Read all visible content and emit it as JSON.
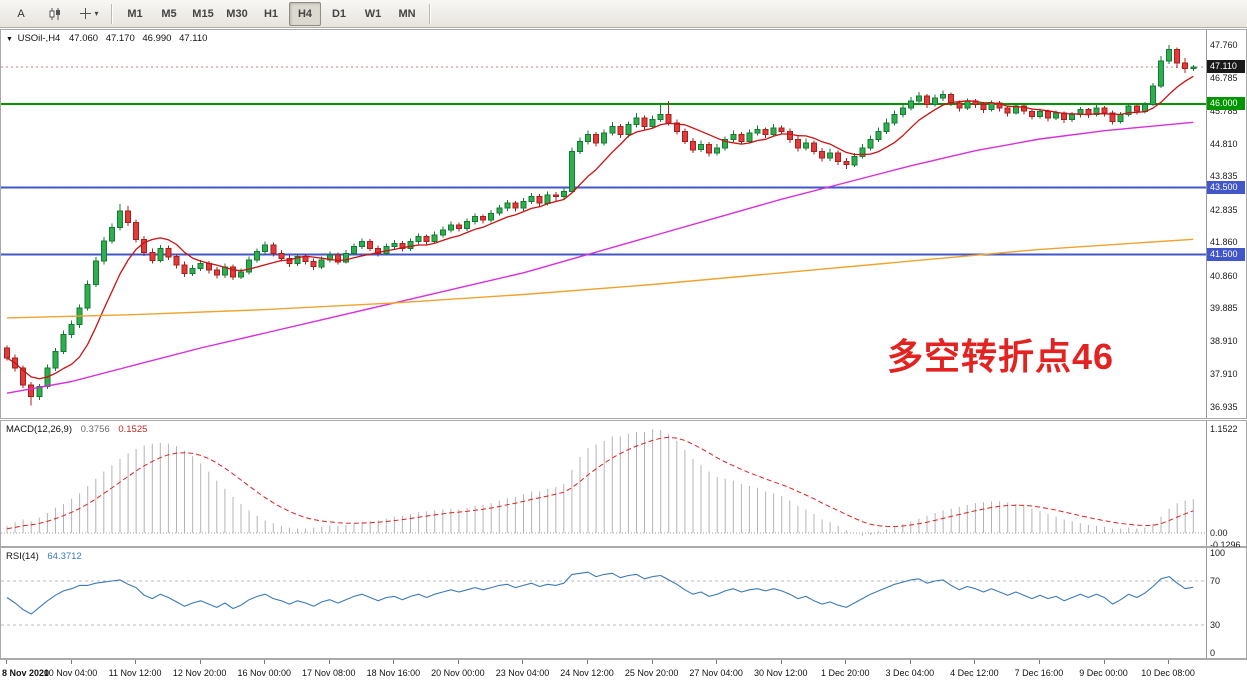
{
  "toolbar": {
    "annotate_label": "A",
    "caret_glyph": "▾",
    "timeframes": [
      {
        "label": "M1",
        "active": false
      },
      {
        "label": "M5",
        "active": false
      },
      {
        "label": "M15",
        "active": false
      },
      {
        "label": "M30",
        "active": false
      },
      {
        "label": "H1",
        "active": false
      },
      {
        "label": "H4",
        "active": true
      },
      {
        "label": "D1",
        "active": false
      },
      {
        "label": "W1",
        "active": false
      },
      {
        "label": "MN",
        "active": false
      }
    ]
  },
  "chart": {
    "symbol": "USOil-,H4",
    "ohlc": {
      "open": "47.060",
      "high": "47.170",
      "low": "46.990",
      "close": "47.110"
    },
    "annotation": {
      "text": "多空转折点46",
      "color": "#e32222"
    },
    "current_price": {
      "label": "47.110",
      "price": 47.11,
      "badge_color": "#1a1a1a"
    },
    "levels": [
      {
        "label": "46.000",
        "price": 46.0,
        "color": "#009600"
      },
      {
        "label": "43.500",
        "price": 43.5,
        "color": "#4156c8"
      },
      {
        "label": "41.500",
        "price": 41.5,
        "color": "#4156c8"
      }
    ],
    "price_axis": [
      {
        "text": "47.760",
        "value": 47.76
      },
      {
        "text": "46.785",
        "value": 46.785
      },
      {
        "text": "45.785",
        "value": 45.785
      },
      {
        "text": "44.810",
        "value": 44.81
      },
      {
        "text": "43.835",
        "value": 43.835
      },
      {
        "text": "42.835",
        "value": 42.835
      },
      {
        "text": "41.860",
        "value": 41.86
      },
      {
        "text": "40.860",
        "value": 40.86
      },
      {
        "text": "39.885",
        "value": 39.885
      },
      {
        "text": "38.910",
        "value": 38.91
      },
      {
        "text": "37.910",
        "value": 37.91
      },
      {
        "text": "36.935",
        "value": 36.935
      }
    ]
  },
  "macd": {
    "label": "MACD(12,26,9)",
    "main_value": "0.3756",
    "signal_value": "0.1525",
    "axis": [
      {
        "text": "1.1522",
        "value": 1.1522
      },
      {
        "text": "0.00",
        "value": 0
      },
      {
        "text": "-0.1296",
        "value": -0.1296
      }
    ]
  },
  "rsi": {
    "label": "RSI(14)",
    "value": "64.3712",
    "axis": [
      {
        "text": "100",
        "value": 100
      },
      {
        "text": "70",
        "value": 70
      },
      {
        "text": "30",
        "value": 30
      },
      {
        "text": "0",
        "value": 0
      }
    ],
    "level_lines": [
      70,
      30
    ]
  },
  "time_axis": {
    "candles_per_label": 8,
    "labels": [
      "8 Nov 2020",
      "10 Nov 04:00",
      "11 Nov 12:00",
      "12 Nov 20:00",
      "16 Nov 00:00",
      "17 Nov 08:00",
      "18 Nov 16:00",
      "20 Nov 00:00",
      "23 Nov 04:00",
      "24 Nov 12:00",
      "25 Nov 20:00",
      "27 Nov 04:00",
      "30 Nov 12:00",
      "1 Dec 20:00",
      "3 Dec 04:00",
      "4 Dec 12:00",
      "7 Dec 16:00",
      "9 Dec 00:00",
      "10 Dec 08:00"
    ]
  },
  "chart_data": {
    "type": "candlestick",
    "symbol": "USOil-",
    "timeframe": "H4",
    "price_range": [
      36.935,
      48.21
    ],
    "candles": [
      [
        38.7,
        38.78,
        38.32,
        38.4
      ],
      [
        38.4,
        38.5,
        38.0,
        38.1
      ],
      [
        38.1,
        38.18,
        37.5,
        37.6
      ],
      [
        37.6,
        37.68,
        36.98,
        37.25
      ],
      [
        37.25,
        37.62,
        37.15,
        37.55
      ],
      [
        37.55,
        38.2,
        37.48,
        38.1
      ],
      [
        38.1,
        38.7,
        38.02,
        38.6
      ],
      [
        38.6,
        39.22,
        38.52,
        39.1
      ],
      [
        39.1,
        39.52,
        39.0,
        39.4
      ],
      [
        39.4,
        40.0,
        39.3,
        39.9
      ],
      [
        39.9,
        40.72,
        39.82,
        40.6
      ],
      [
        40.6,
        41.42,
        40.52,
        41.3
      ],
      [
        41.3,
        42.02,
        41.2,
        41.9
      ],
      [
        41.9,
        42.42,
        41.82,
        42.3
      ],
      [
        42.3,
        43.0,
        42.22,
        42.8
      ],
      [
        42.8,
        42.95,
        42.35,
        42.45
      ],
      [
        42.45,
        42.55,
        41.85,
        41.95
      ],
      [
        41.95,
        42.05,
        41.45,
        41.55
      ],
      [
        41.55,
        41.68,
        41.22,
        41.32
      ],
      [
        41.32,
        41.78,
        41.25,
        41.68
      ],
      [
        41.68,
        41.76,
        41.33,
        41.43
      ],
      [
        41.43,
        41.53,
        41.08,
        41.18
      ],
      [
        41.18,
        41.28,
        40.83,
        40.93
      ],
      [
        40.93,
        41.18,
        40.86,
        41.08
      ],
      [
        41.08,
        41.33,
        41.0,
        41.23
      ],
      [
        41.23,
        41.3,
        40.93,
        41.03
      ],
      [
        41.03,
        41.13,
        40.78,
        40.88
      ],
      [
        40.88,
        41.23,
        40.8,
        41.13
      ],
      [
        41.13,
        41.2,
        40.73,
        40.83
      ],
      [
        40.83,
        41.08,
        40.76,
        40.98
      ],
      [
        40.98,
        41.43,
        40.9,
        41.33
      ],
      [
        41.33,
        41.68,
        41.26,
        41.58
      ],
      [
        41.58,
        41.88,
        41.5,
        41.78
      ],
      [
        41.78,
        41.86,
        41.43,
        41.53
      ],
      [
        41.53,
        41.63,
        41.28,
        41.38
      ],
      [
        41.38,
        41.48,
        41.13,
        41.23
      ],
      [
        41.23,
        41.53,
        41.16,
        41.43
      ],
      [
        41.43,
        41.5,
        41.2,
        41.28
      ],
      [
        41.28,
        41.38,
        41.03,
        41.13
      ],
      [
        41.13,
        41.43,
        41.06,
        41.33
      ],
      [
        41.33,
        41.58,
        41.26,
        41.48
      ],
      [
        41.48,
        41.56,
        41.2,
        41.28
      ],
      [
        41.28,
        41.63,
        41.22,
        41.53
      ],
      [
        41.53,
        41.83,
        41.46,
        41.73
      ],
      [
        41.73,
        41.98,
        41.66,
        41.88
      ],
      [
        41.88,
        41.96,
        41.6,
        41.68
      ],
      [
        41.68,
        41.76,
        41.43,
        41.53
      ],
      [
        41.53,
        41.83,
        41.46,
        41.73
      ],
      [
        41.73,
        41.93,
        41.66,
        41.83
      ],
      [
        41.83,
        41.9,
        41.58,
        41.68
      ],
      [
        41.68,
        41.98,
        41.6,
        41.88
      ],
      [
        41.88,
        42.13,
        41.8,
        42.03
      ],
      [
        42.03,
        42.1,
        41.78,
        41.88
      ],
      [
        41.88,
        42.18,
        41.82,
        42.08
      ],
      [
        42.08,
        42.33,
        42.0,
        42.23
      ],
      [
        42.23,
        42.48,
        42.16,
        42.38
      ],
      [
        42.38,
        42.46,
        42.18,
        42.28
      ],
      [
        42.28,
        42.58,
        42.2,
        42.48
      ],
      [
        42.48,
        42.73,
        42.4,
        42.63
      ],
      [
        42.63,
        42.7,
        42.43,
        42.53
      ],
      [
        42.53,
        42.83,
        42.46,
        42.73
      ],
      [
        42.73,
        42.98,
        42.66,
        42.88
      ],
      [
        42.88,
        43.13,
        42.8,
        43.03
      ],
      [
        43.03,
        43.1,
        42.78,
        42.88
      ],
      [
        42.88,
        43.18,
        42.8,
        43.08
      ],
      [
        43.08,
        43.33,
        43.0,
        43.23
      ],
      [
        43.23,
        43.3,
        42.93,
        43.03
      ],
      [
        43.03,
        43.38,
        42.96,
        43.28
      ],
      [
        43.28,
        43.36,
        43.1,
        43.23
      ],
      [
        43.23,
        43.48,
        43.16,
        43.38
      ],
      [
        43.38,
        44.7,
        43.33,
        44.58
      ],
      [
        44.58,
        45.0,
        44.5,
        44.88
      ],
      [
        44.88,
        45.2,
        44.78,
        45.08
      ],
      [
        45.08,
        45.16,
        44.73,
        44.83
      ],
      [
        44.83,
        45.23,
        44.76,
        45.13
      ],
      [
        45.13,
        45.46,
        45.06,
        45.33
      ],
      [
        45.33,
        45.4,
        44.98,
        45.08
      ],
      [
        45.08,
        45.48,
        45.0,
        45.38
      ],
      [
        45.38,
        45.73,
        45.3,
        45.58
      ],
      [
        45.58,
        45.66,
        45.23,
        45.33
      ],
      [
        45.33,
        45.66,
        45.26,
        45.53
      ],
      [
        45.53,
        46.03,
        45.46,
        45.68
      ],
      [
        45.68,
        46.08,
        45.36,
        45.43
      ],
      [
        45.43,
        45.53,
        45.08,
        45.18
      ],
      [
        45.18,
        45.26,
        44.8,
        44.88
      ],
      [
        44.88,
        44.98,
        44.53,
        44.63
      ],
      [
        44.63,
        44.9,
        44.56,
        44.78
      ],
      [
        44.78,
        44.86,
        44.43,
        44.53
      ],
      [
        44.53,
        44.8,
        44.46,
        44.68
      ],
      [
        44.68,
        45.03,
        44.6,
        44.93
      ],
      [
        44.93,
        45.2,
        44.86,
        45.08
      ],
      [
        45.08,
        45.16,
        44.8,
        44.88
      ],
      [
        44.88,
        45.23,
        44.82,
        45.13
      ],
      [
        45.13,
        45.36,
        45.06,
        45.23
      ],
      [
        45.23,
        45.3,
        44.98,
        45.08
      ],
      [
        45.08,
        45.4,
        45.02,
        45.28
      ],
      [
        45.28,
        45.36,
        45.08,
        45.18
      ],
      [
        45.18,
        45.26,
        44.83,
        44.93
      ],
      [
        44.93,
        45.03,
        44.58,
        44.68
      ],
      [
        44.68,
        44.96,
        44.6,
        44.83
      ],
      [
        44.83,
        44.9,
        44.48,
        44.58
      ],
      [
        44.58,
        44.68,
        44.28,
        44.38
      ],
      [
        44.38,
        44.66,
        44.3,
        44.53
      ],
      [
        44.53,
        44.6,
        44.18,
        44.28
      ],
      [
        44.28,
        44.38,
        44.06,
        44.18
      ],
      [
        44.18,
        44.53,
        44.12,
        44.43
      ],
      [
        44.43,
        44.8,
        44.36,
        44.68
      ],
      [
        44.68,
        45.06,
        44.6,
        44.93
      ],
      [
        44.93,
        45.3,
        44.86,
        45.18
      ],
      [
        45.18,
        45.56,
        45.1,
        45.43
      ],
      [
        45.43,
        45.8,
        45.36,
        45.68
      ],
      [
        45.68,
        46.0,
        45.6,
        45.88
      ],
      [
        45.88,
        46.2,
        45.8,
        46.08
      ],
      [
        46.08,
        46.36,
        46.0,
        46.23
      ],
      [
        46.23,
        46.3,
        45.88,
        45.98
      ],
      [
        45.98,
        46.28,
        45.92,
        46.18
      ],
      [
        46.18,
        46.4,
        46.08,
        46.28
      ],
      [
        46.28,
        46.34,
        45.93,
        46.03
      ],
      [
        46.03,
        46.1,
        45.78,
        45.88
      ],
      [
        45.88,
        46.16,
        45.82,
        46.08
      ],
      [
        46.08,
        46.14,
        45.88,
        45.98
      ],
      [
        45.98,
        46.06,
        45.73,
        45.83
      ],
      [
        45.83,
        46.1,
        45.78,
        46.03
      ],
      [
        46.03,
        46.08,
        45.78,
        45.88
      ],
      [
        45.88,
        45.94,
        45.63,
        45.73
      ],
      [
        45.73,
        46.0,
        45.68,
        45.93
      ],
      [
        45.93,
        45.98,
        45.68,
        45.78
      ],
      [
        45.78,
        45.84,
        45.53,
        45.63
      ],
      [
        45.63,
        45.86,
        45.56,
        45.78
      ],
      [
        45.78,
        45.84,
        45.48,
        45.58
      ],
      [
        45.58,
        45.8,
        45.52,
        45.73
      ],
      [
        45.73,
        45.78,
        45.43,
        45.53
      ],
      [
        45.53,
        45.76,
        45.46,
        45.68
      ],
      [
        45.68,
        45.9,
        45.6,
        45.83
      ],
      [
        45.83,
        45.88,
        45.58,
        45.68
      ],
      [
        45.68,
        45.96,
        45.62,
        45.88
      ],
      [
        45.88,
        45.93,
        45.63,
        45.73
      ],
      [
        45.73,
        45.8,
        45.38,
        45.48
      ],
      [
        45.48,
        45.76,
        45.42,
        45.68
      ],
      [
        45.68,
        46.0,
        45.62,
        45.93
      ],
      [
        45.93,
        45.98,
        45.68,
        45.78
      ],
      [
        45.78,
        46.06,
        45.72,
        45.98
      ],
      [
        45.98,
        46.63,
        45.93,
        46.53
      ],
      [
        46.53,
        47.43,
        46.48,
        47.28
      ],
      [
        47.28,
        47.76,
        47.2,
        47.63
      ],
      [
        47.63,
        47.68,
        47.08,
        47.23
      ],
      [
        47.23,
        47.38,
        46.93,
        47.06
      ],
      [
        47.06,
        47.17,
        46.99,
        47.11
      ]
    ],
    "ma_red_period": 8,
    "ma_magenta_points": [
      [
        0,
        37.35
      ],
      [
        8,
        37.7
      ],
      [
        16,
        38.2
      ],
      [
        24,
        38.7
      ],
      [
        32,
        39.15
      ],
      [
        40,
        39.6
      ],
      [
        48,
        40.05
      ],
      [
        56,
        40.5
      ],
      [
        64,
        40.95
      ],
      [
        72,
        41.5
      ],
      [
        80,
        42.05
      ],
      [
        88,
        42.6
      ],
      [
        96,
        43.15
      ],
      [
        104,
        43.65
      ],
      [
        112,
        44.15
      ],
      [
        120,
        44.6
      ],
      [
        128,
        44.95
      ],
      [
        136,
        45.2
      ],
      [
        147,
        45.45
      ]
    ],
    "ma_orange_points": [
      [
        0,
        39.6
      ],
      [
        16,
        39.7
      ],
      [
        32,
        39.85
      ],
      [
        48,
        40.05
      ],
      [
        64,
        40.3
      ],
      [
        80,
        40.6
      ],
      [
        96,
        40.95
      ],
      [
        112,
        41.3
      ],
      [
        128,
        41.65
      ],
      [
        147,
        41.95
      ]
    ],
    "macd_hist": [
      0.08,
      0.12,
      0.15,
      0.13,
      0.17,
      0.22,
      0.28,
      0.32,
      0.38,
      0.44,
      0.52,
      0.6,
      0.68,
      0.75,
      0.82,
      0.88,
      0.93,
      0.97,
      0.99,
      1.0,
      0.99,
      0.96,
      0.91,
      0.85,
      0.77,
      0.68,
      0.58,
      0.49,
      0.4,
      0.32,
      0.25,
      0.19,
      0.14,
      0.11,
      0.08,
      0.06,
      0.05,
      0.05,
      0.06,
      0.07,
      0.08,
      0.08,
      0.09,
      0.1,
      0.12,
      0.13,
      0.14,
      0.16,
      0.18,
      0.19,
      0.21,
      0.23,
      0.24,
      0.25,
      0.26,
      0.27,
      0.26,
      0.28,
      0.3,
      0.31,
      0.33,
      0.36,
      0.39,
      0.4,
      0.43,
      0.46,
      0.46,
      0.49,
      0.51,
      0.54,
      0.7,
      0.84,
      0.94,
      0.98,
      1.02,
      1.07,
      1.07,
      1.1,
      1.12,
      1.12,
      1.15,
      1.14,
      1.1,
      1.02,
      0.92,
      0.82,
      0.75,
      0.68,
      0.62,
      0.6,
      0.58,
      0.54,
      0.52,
      0.5,
      0.46,
      0.44,
      0.41,
      0.36,
      0.3,
      0.26,
      0.21,
      0.15,
      0.12,
      0.08,
      0.03,
      0.0,
      -0.03,
      -0.02,
      0.02,
      0.04,
      0.07,
      0.1,
      0.13,
      0.16,
      0.19,
      0.22,
      0.25,
      0.27,
      0.29,
      0.31,
      0.33,
      0.34,
      0.35,
      0.35,
      0.34,
      0.32,
      0.3,
      0.27,
      0.24,
      0.21,
      0.18,
      0.15,
      0.13,
      0.11,
      0.09,
      0.08,
      0.07,
      0.05,
      0.05,
      0.06,
      0.05,
      0.06,
      0.1,
      0.18,
      0.27,
      0.33,
      0.36,
      0.3756
    ],
    "macd_range": [
      -0.1296,
      1.1522
    ],
    "rsi_values": [
      55,
      50,
      44,
      40,
      46,
      52,
      57,
      61,
      63,
      66,
      66,
      68,
      69,
      70,
      71,
      67,
      64,
      57,
      54,
      58,
      55,
      51,
      47,
      50,
      52,
      49,
      46,
      50,
      45,
      48,
      53,
      56,
      58,
      54,
      52,
      49,
      52,
      50,
      47,
      51,
      53,
      50,
      53,
      56,
      58,
      55,
      52,
      55,
      56,
      53,
      56,
      58,
      55,
      58,
      60,
      62,
      60,
      62,
      64,
      62,
      64,
      66,
      67,
      64,
      66,
      68,
      65,
      67,
      66,
      68,
      76,
      77,
      78,
      74,
      76,
      77,
      73,
      75,
      76,
      72,
      74,
      75,
      71,
      67,
      62,
      58,
      60,
      56,
      58,
      61,
      63,
      60,
      62,
      63,
      61,
      63,
      61,
      58,
      54,
      56,
      52,
      49,
      51,
      48,
      46,
      50,
      54,
      58,
      61,
      64,
      67,
      69,
      71,
      72,
      68,
      70,
      71,
      66,
      62,
      65,
      63,
      60,
      63,
      60,
      57,
      60,
      57,
      54,
      57,
      54,
      56,
      52,
      55,
      58,
      55,
      58,
      55,
      49,
      53,
      58,
      55,
      59,
      65,
      72,
      74,
      68,
      63,
      64.37
    ],
    "rsi_range": [
      0,
      100
    ]
  }
}
